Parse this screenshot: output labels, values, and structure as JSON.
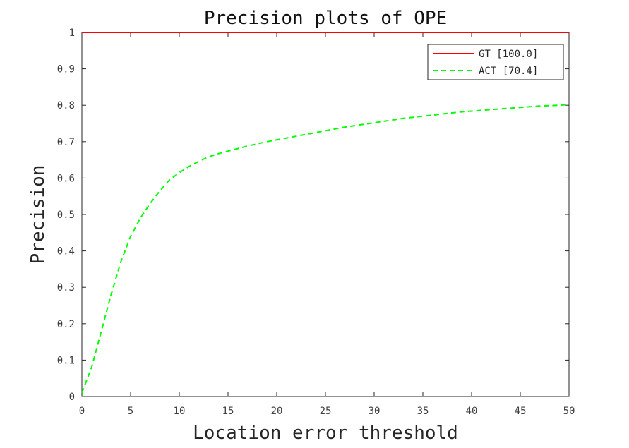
{
  "chart_data": {
    "type": "line",
    "title": "Precision plots of OPE",
    "xlabel": "Location error threshold",
    "ylabel": "Precision",
    "xlim": [
      0,
      50
    ],
    "ylim": [
      0,
      1
    ],
    "xticks": [
      0,
      5,
      10,
      15,
      20,
      25,
      30,
      35,
      40,
      45,
      50
    ],
    "yticks": [
      0,
      0.1,
      0.2,
      0.3,
      0.4,
      0.5,
      0.6,
      0.7,
      0.8,
      0.9,
      1
    ],
    "ytick_labels": [
      "0",
      "0.1",
      "0.2",
      "0.3",
      "0.4",
      "0.5",
      "0.6",
      "0.7",
      "0.8",
      "0.9",
      "1"
    ],
    "grid": false,
    "legend_position": "top-right",
    "series": [
      {
        "name": "GT [100.0]",
        "color": "#ff0000",
        "style": "solid",
        "x": [
          0,
          50
        ],
        "y": [
          1,
          1
        ]
      },
      {
        "name": "ACT [70.4]",
        "color": "#00ff00",
        "style": "dashed",
        "x": [
          0,
          1,
          2,
          3,
          4,
          5,
          6,
          7,
          8,
          9,
          10,
          11,
          12,
          13,
          14,
          15,
          16,
          17,
          18,
          19,
          20,
          21,
          22,
          23,
          24,
          25,
          26,
          27,
          28,
          29,
          30,
          31,
          32,
          33,
          34,
          35,
          36,
          37,
          38,
          39,
          40,
          41,
          42,
          43,
          44,
          45,
          46,
          47,
          48,
          49,
          50
        ],
        "y": [
          0.01,
          0.08,
          0.18,
          0.28,
          0.37,
          0.44,
          0.49,
          0.53,
          0.565,
          0.595,
          0.615,
          0.632,
          0.646,
          0.658,
          0.667,
          0.674,
          0.681,
          0.688,
          0.694,
          0.7,
          0.705,
          0.71,
          0.715,
          0.72,
          0.725,
          0.73,
          0.735,
          0.74,
          0.744,
          0.748,
          0.752,
          0.756,
          0.76,
          0.764,
          0.767,
          0.77,
          0.773,
          0.776,
          0.779,
          0.782,
          0.784,
          0.786,
          0.788,
          0.79,
          0.792,
          0.794,
          0.796,
          0.798,
          0.799,
          0.8,
          0.802
        ]
      }
    ]
  }
}
